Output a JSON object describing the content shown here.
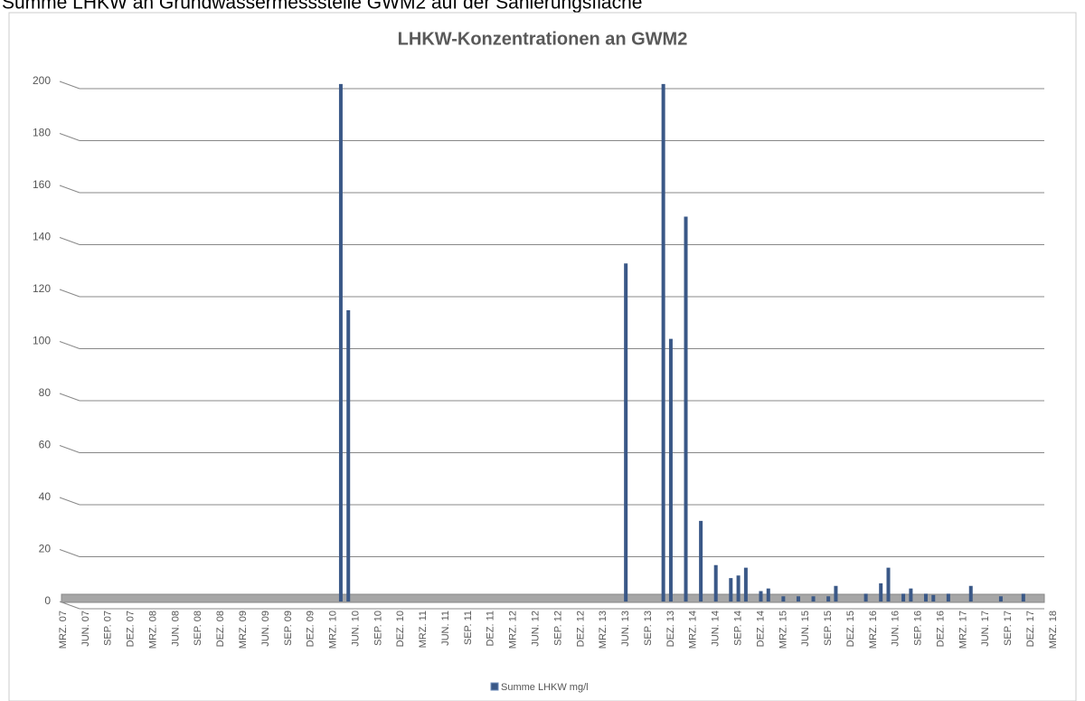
{
  "caption": "Summe LHKW an Grundwassermessstelle GWM2 auf der Sanierungsfläche",
  "chart_data": {
    "type": "bar",
    "title": "LHKW-Konzentrationen an GWM2",
    "categories": [
      "MRZ. 07",
      "JUN. 07",
      "SEP. 07",
      "DEZ. 07",
      "MRZ. 08",
      "JUN. 08",
      "SEP. 08",
      "DEZ. 08",
      "MRZ. 09",
      "JUN. 09",
      "SEP. 09",
      "DEZ. 09",
      "MRZ. 10",
      "JUN. 10",
      "SEP. 10",
      "DEZ. 10",
      "MRZ. 11",
      "JUN. 11",
      "SEP. 11",
      "DEZ. 11",
      "MRZ. 12",
      "JUN. 12",
      "SEP. 12",
      "DEZ. 12",
      "MRZ. 13",
      "JUN. 13",
      "SEP. 13",
      "DEZ. 13",
      "MRZ. 14",
      "JUN. 14",
      "SEP. 14",
      "DEZ. 14",
      "MRZ. 15",
      "JUN. 15",
      "SEP. 15",
      "DEZ. 15",
      "MRZ. 16",
      "JUN. 16",
      "SEP. 16",
      "DEZ. 16",
      "MRZ. 17",
      "JUN. 17",
      "SEP. 17",
      "DEZ. 17",
      "MRZ. 18"
    ],
    "xlim": [
      "2007-03",
      "2018-03"
    ],
    "series": [
      {
        "name": "Summe LHKW mg/l",
        "color": "#3a5887",
        "x": [
          "2010-04",
          "2010-05",
          "2013-06",
          "2013-11",
          "2013-12",
          "2014-02",
          "2014-04",
          "2014-06",
          "2014-08",
          "2014-09",
          "2014-10",
          "2014-12",
          "2015-01",
          "2015-03",
          "2015-05",
          "2015-07",
          "2015-09",
          "2015-10",
          "2016-02",
          "2016-04",
          "2016-05",
          "2016-07",
          "2016-08",
          "2016-10",
          "2016-11",
          "2017-01",
          "2017-04",
          "2017-08",
          "2017-11"
        ],
        "values": [
          199,
          112,
          130,
          199,
          101,
          148,
          31,
          14,
          9,
          10,
          13,
          4,
          5,
          2,
          2,
          2,
          2,
          6,
          3,
          7,
          13,
          3,
          5,
          3,
          2.5,
          3,
          6,
          2,
          3
        ]
      }
    ],
    "ylim": [
      0,
      200
    ],
    "yticks": [
      0,
      20,
      40,
      60,
      80,
      100,
      120,
      140,
      160,
      180,
      200
    ],
    "grid": true
  }
}
